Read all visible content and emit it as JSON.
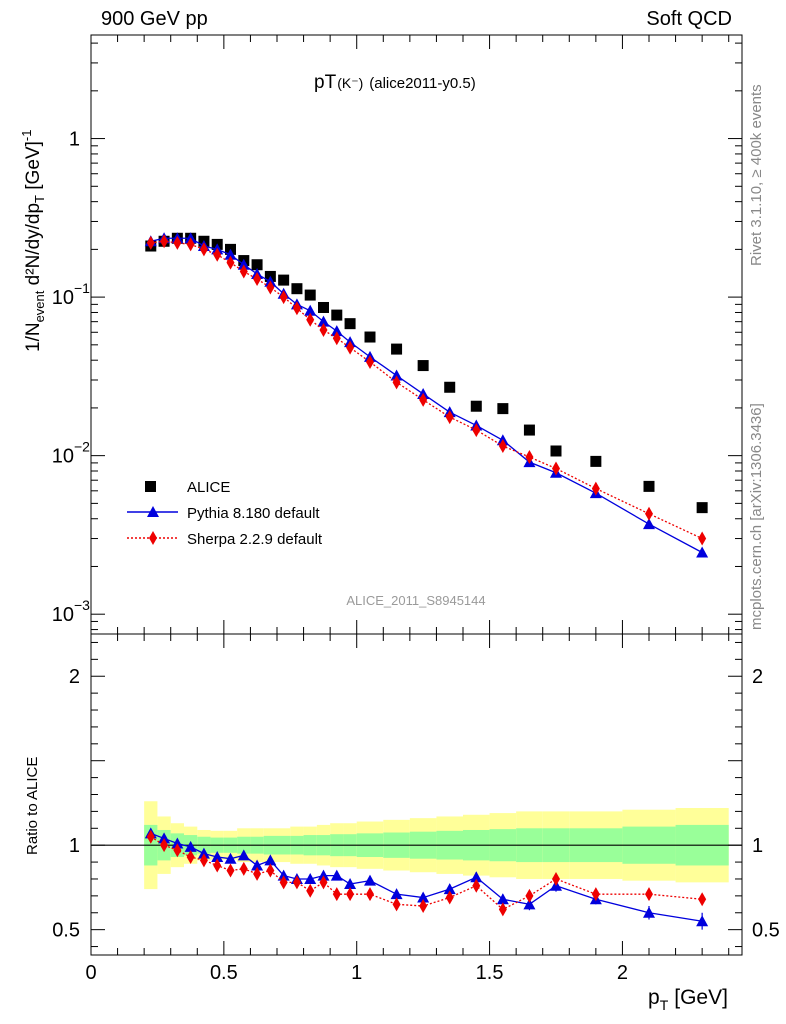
{
  "header": {
    "left": "900 GeV pp",
    "right": "Soft QCD"
  },
  "side_labels": {
    "rivet": "Rivet 3.1.10, ≥ 400k events",
    "mcplots": "mcplots.cern.ch [arXiv:1306.3436]"
  },
  "chart_data": {
    "type": "scatter",
    "title_main": "pT",
    "title_sub": "(K⁻)",
    "title_tag": "(alice2011-y0.5)",
    "watermark": "ALICE_2011_S8945144",
    "xlabel_main": "p",
    "xlabel_sub": "T",
    "xlabel_unit": "[GeV]",
    "ylabel_top": "1/N",
    "ylabel_top_sub": "event",
    "ylabel_rest": " d²N/dy/dp",
    "ylabel_rest_sub": "T",
    "ylabel_unit": " [GeV]",
    "ylabel_unit_sup": "-1",
    "ratio_ylabel": "Ratio to ALICE",
    "xlim": [
      0,
      2.45
    ],
    "ylim_log": [
      0.00075,
      4.5
    ],
    "ratio_ylim": [
      0.35,
      2.25
    ],
    "x_ticks": [
      "0",
      "0.5",
      "1",
      "1.5",
      "2"
    ],
    "x_tick_values": [
      0,
      0.5,
      1,
      1.5,
      2
    ],
    "y_ticks": [
      {
        "value": 1,
        "label": "1",
        "exp": ""
      },
      {
        "value": 0.1,
        "label": "10",
        "exp": "−1"
      },
      {
        "value": 0.01,
        "label": "10",
        "exp": "−2"
      },
      {
        "value": 0.001,
        "label": "10",
        "exp": "−3"
      }
    ],
    "ratio_ticks": [
      {
        "value": 2,
        "label": "2"
      },
      {
        "value": 1,
        "label": "1"
      },
      {
        "value": 0.5,
        "label": "0.5"
      }
    ],
    "legend": {
      "position": "bottom-left"
    },
    "x": [
      0.225,
      0.275,
      0.325,
      0.375,
      0.425,
      0.475,
      0.525,
      0.575,
      0.625,
      0.675,
      0.725,
      0.775,
      0.825,
      0.875,
      0.925,
      0.975,
      1.05,
      1.15,
      1.25,
      1.35,
      1.45,
      1.55,
      1.65,
      1.75,
      1.9,
      2.1,
      2.3
    ],
    "x_edges": [
      0.2,
      0.25,
      0.3,
      0.35,
      0.4,
      0.45,
      0.5,
      0.55,
      0.6,
      0.65,
      0.7,
      0.75,
      0.8,
      0.85,
      0.9,
      0.95,
      1.0,
      1.1,
      1.2,
      1.3,
      1.4,
      1.5,
      1.6,
      1.7,
      1.8,
      2.0,
      2.2,
      2.4
    ],
    "band_inner": [
      0.12,
      0.09,
      0.07,
      0.06,
      0.05,
      0.045,
      0.045,
      0.05,
      0.05,
      0.055,
      0.055,
      0.055,
      0.06,
      0.06,
      0.065,
      0.065,
      0.07,
      0.075,
      0.08,
      0.085,
      0.09,
      0.095,
      0.1,
      0.1,
      0.1,
      0.11,
      0.12
    ],
    "band_outer": [
      0.26,
      0.17,
      0.13,
      0.11,
      0.09,
      0.085,
      0.085,
      0.1,
      0.1,
      0.1,
      0.1,
      0.11,
      0.11,
      0.12,
      0.13,
      0.13,
      0.14,
      0.15,
      0.16,
      0.17,
      0.18,
      0.19,
      0.2,
      0.2,
      0.2,
      0.21,
      0.22
    ],
    "series": [
      {
        "name": "ALICE",
        "color": "#000000",
        "marker": "square",
        "values": [
          0.21,
          0.225,
          0.235,
          0.235,
          0.225,
          0.215,
          0.2,
          0.17,
          0.16,
          0.135,
          0.128,
          0.113,
          0.103,
          0.086,
          0.077,
          0.068,
          0.056,
          0.047,
          0.037,
          0.027,
          0.0205,
          0.0198,
          0.0145,
          0.0107,
          0.0092,
          0.0064,
          0.0047
        ]
      },
      {
        "name": "Pythia 8.180 default",
        "color": "#0000dd",
        "marker": "triangle",
        "line": "solid",
        "values": [
          0.225,
          0.235,
          0.235,
          0.235,
          0.21,
          0.2,
          0.185,
          0.16,
          0.14,
          0.125,
          0.105,
          0.09,
          0.082,
          0.07,
          0.061,
          0.052,
          0.042,
          0.032,
          0.0245,
          0.0188,
          0.0155,
          0.0125,
          0.0091,
          0.0078,
          0.0058,
          0.0037,
          0.00245
        ]
      },
      {
        "name": "Sherpa 2.2.9 default",
        "color": "#ee0000",
        "marker": "diamond",
        "line": "dotted",
        "values": [
          0.22,
          0.225,
          0.22,
          0.215,
          0.2,
          0.185,
          0.165,
          0.145,
          0.13,
          0.115,
          0.1,
          0.085,
          0.072,
          0.062,
          0.055,
          0.048,
          0.039,
          0.029,
          0.0225,
          0.0175,
          0.0145,
          0.0115,
          0.0098,
          0.0083,
          0.0062,
          0.0043,
          0.003
        ]
      }
    ],
    "ratios": {
      "Pythia 8.180 default": [
        1.07,
        1.04,
        1.01,
        0.99,
        0.95,
        0.93,
        0.92,
        0.94,
        0.88,
        0.91,
        0.82,
        0.8,
        0.8,
        0.82,
        0.82,
        0.77,
        0.79,
        0.71,
        0.69,
        0.74,
        0.81,
        0.68,
        0.65,
        0.76,
        0.68,
        0.6,
        0.55
      ],
      "Sherpa 2.2.9 default": [
        1.05,
        1.0,
        0.97,
        0.93,
        0.91,
        0.88,
        0.85,
        0.86,
        0.83,
        0.85,
        0.78,
        0.78,
        0.73,
        0.78,
        0.71,
        0.71,
        0.71,
        0.65,
        0.64,
        0.69,
        0.76,
        0.62,
        0.7,
        0.8,
        0.71,
        0.71,
        0.68
      ]
    },
    "ratio_errors": {
      "Pythia 8.180 default": [
        0.02,
        0.015,
        0.012,
        0.012,
        0.012,
        0.012,
        0.012,
        0.012,
        0.015,
        0.015,
        0.015,
        0.015,
        0.018,
        0.018,
        0.02,
        0.02,
        0.02,
        0.02,
        0.025,
        0.03,
        0.03,
        0.03,
        0.035,
        0.035,
        0.03,
        0.04,
        0.05
      ],
      "Sherpa 2.2.9 default": [
        0.01,
        0.01,
        0.01,
        0.01,
        0.01,
        0.01,
        0.01,
        0.01,
        0.01,
        0.01,
        0.01,
        0.01,
        0.01,
        0.01,
        0.01,
        0.01,
        0.01,
        0.01,
        0.01,
        0.01,
        0.01,
        0.01,
        0.01,
        0.01,
        0.01,
        0.01,
        0.01
      ]
    }
  }
}
